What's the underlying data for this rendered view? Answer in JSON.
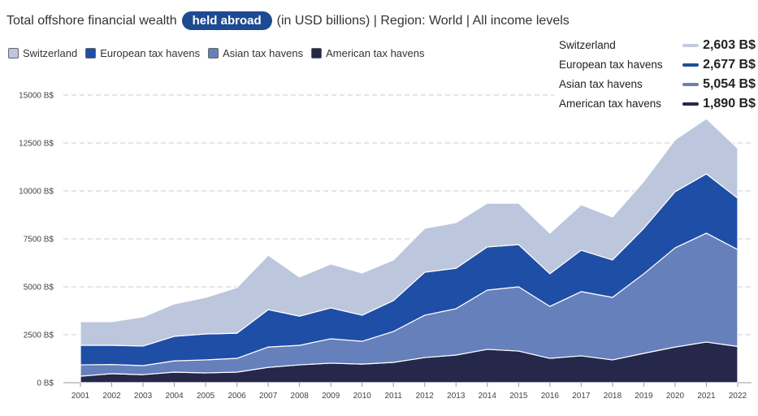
{
  "header": {
    "title_prefix": "Total offshore financial wealth",
    "pill": "held abroad",
    "title_suffix": "(in USD billions) | Region: World | All income levels"
  },
  "tooltip": {
    "rows": [
      {
        "name": "Switzerland",
        "value": "2,603 B$",
        "color": "#c3cbdc"
      },
      {
        "name": "European tax havens",
        "value": "2,677 B$",
        "color": "#1f4e96"
      },
      {
        "name": "Asian tax havens",
        "value": "5,054 B$",
        "color": "#6a82b4"
      },
      {
        "name": "American tax havens",
        "value": "1,890 B$",
        "color": "#25284a"
      }
    ]
  },
  "chart_data": {
    "type": "area",
    "stacked": true,
    "grid": true,
    "legend": "top-left",
    "ylim": [
      0,
      15000
    ],
    "yticks": [
      "0 B$",
      "2500 B$",
      "5000 B$",
      "7500 B$",
      "10000 B$",
      "12500 B$",
      "15000 B$"
    ],
    "ytick_values": [
      0,
      2500,
      5000,
      7500,
      10000,
      12500,
      15000
    ],
    "x": [
      "2001",
      "2002",
      "2003",
      "2004",
      "2005",
      "2006",
      "2007",
      "2008",
      "2009",
      "2010",
      "2011",
      "2012",
      "2013",
      "2014",
      "2015",
      "2016",
      "2017",
      "2018",
      "2019",
      "2020",
      "2021",
      "2022"
    ],
    "series": [
      {
        "name": "American tax havens",
        "color": "#25284a",
        "values": [
          340,
          470,
          420,
          550,
          510,
          550,
          800,
          930,
          1020,
          970,
          1060,
          1310,
          1440,
          1740,
          1650,
          1270,
          1400,
          1190,
          1530,
          1860,
          2120,
          1890
        ]
      },
      {
        "name": "Asian tax havens",
        "color": "#6680bb",
        "values": [
          590,
          480,
          470,
          590,
          680,
          720,
          1060,
          1020,
          1270,
          1190,
          1610,
          2210,
          2420,
          3090,
          3350,
          2710,
          3350,
          3260,
          4150,
          5170,
          5680,
          5054
        ]
      },
      {
        "name": "European tax havens",
        "color": "#1f4ea6",
        "values": [
          1020,
          1000,
          1020,
          1280,
          1350,
          1310,
          1950,
          1520,
          1610,
          1360,
          1610,
          2240,
          2110,
          2250,
          2200,
          1700,
          2160,
          1950,
          2370,
          2930,
          3090,
          2677
        ]
      },
      {
        "name": "Switzerland",
        "color": "#bcc6dc",
        "values": [
          1230,
          1230,
          1520,
          1690,
          1910,
          2380,
          2840,
          2040,
          2290,
          2200,
          2120,
          2290,
          2380,
          2280,
          2160,
          2120,
          2370,
          2240,
          2450,
          2710,
          2880,
          2603
        ]
      }
    ],
    "legend_order": [
      "Switzerland",
      "European tax havens",
      "Asian tax havens",
      "American tax havens"
    ]
  }
}
